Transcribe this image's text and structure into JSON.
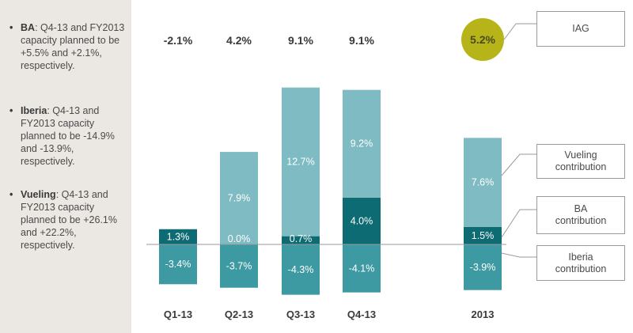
{
  "sidebar": {
    "notes": [
      {
        "name": "BA",
        "text": ": Q4-13 and FY2013 capacity planned to be +5.5% and +2.1%, respectively."
      },
      {
        "name": "Iberia",
        "text": ": Q4-13 and FY2013 capacity planned to be -14.9% and -13.9%, respectively."
      },
      {
        "name": "Vueling",
        "text": ": Q4-13 and FY2013 capacity planned to be +26.1% and +22.2%, respectively."
      }
    ]
  },
  "chart_data": {
    "type": "bar",
    "stacked": true,
    "categories": [
      "Q1-13",
      "Q2-13",
      "Q3-13",
      "Q4-13",
      "2013"
    ],
    "totals": [
      "-2.1%",
      "4.2%",
      "9.1%",
      "9.1%",
      "5.2%"
    ],
    "series": [
      {
        "name": "Iberia contribution",
        "color": "#3e9aa2",
        "values": [
          -3.4,
          -3.7,
          -4.3,
          -4.1,
          -3.9
        ],
        "labels": [
          "-3.4%",
          "-3.7%",
          "-4.3%",
          "-4.1%",
          "-3.9%"
        ]
      },
      {
        "name": "BA contribution",
        "color": "#0d6b73",
        "values": [
          1.3,
          0.0,
          0.7,
          4.0,
          1.5
        ],
        "labels": [
          "1.3%",
          "0.0%",
          "0.7%",
          "4.0%",
          "1.5%"
        ]
      },
      {
        "name": "Vueling contribution",
        "color": "#7fbbc3",
        "values": [
          null,
          7.9,
          12.7,
          9.2,
          7.6
        ],
        "labels": [
          "",
          "7.9%",
          "12.7%",
          "9.2%",
          "7.6%"
        ]
      }
    ],
    "total_label": "IAG",
    "ylim": [
      -4.7,
      14.5
    ],
    "grid": false,
    "legend": "right"
  },
  "colors": {
    "iberia": "#3e9aa2",
    "ba": "#0d6b73",
    "vueling": "#7fbbc3",
    "iag": "#b6b418",
    "sidebar_bg": "#ebe8e3"
  }
}
